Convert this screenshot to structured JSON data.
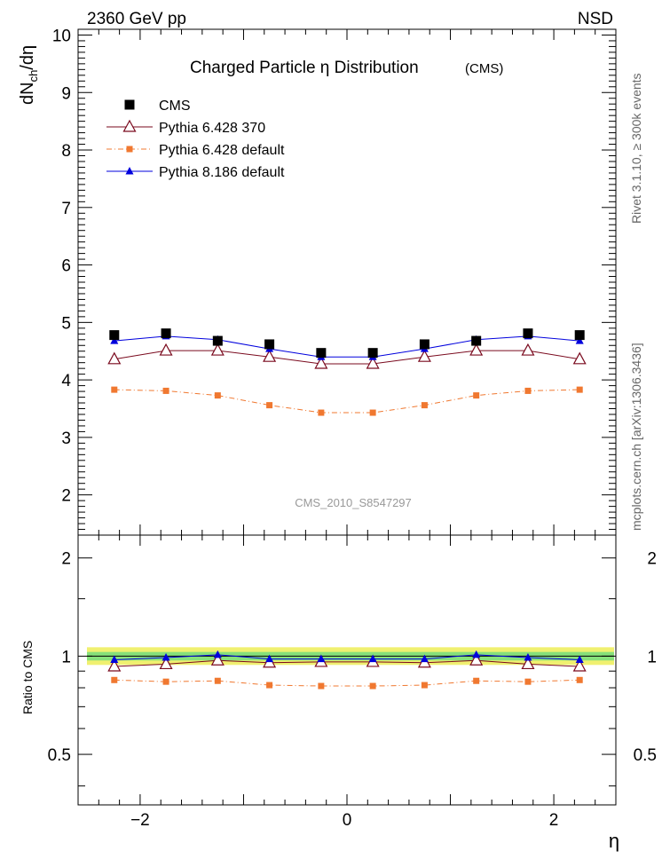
{
  "header": {
    "energy_label": "2360 GeV pp",
    "event_type": "NSD"
  },
  "side_labels": {
    "rivet": "Rivet 3.1.10, ≥ 300k events",
    "mcplots": "mcplots.cern.ch [arXiv:1306.3436]"
  },
  "chart_data": {
    "type": "line",
    "title": "Charged Particle  η Distribution",
    "title_suffix": "(CMS)",
    "watermark": "CMS_2010_S8547297",
    "xlabel": "η",
    "ylabel_main": "dN_ch/dη",
    "ylabel_ratio": "Ratio to CMS",
    "xlim": [
      -2.6,
      2.6
    ],
    "ylim_main": [
      1.3,
      10.1
    ],
    "ylim_ratio": [
      0.35,
      2.35
    ],
    "x_ticks": [
      -2,
      0,
      2
    ],
    "x_tick_labels": [
      "−2",
      "0",
      "2"
    ],
    "y_ticks_main": [
      2,
      3,
      4,
      5,
      6,
      7,
      8,
      9,
      10
    ],
    "y_tick_labels_main": [
      "2",
      "3",
      "4",
      "5",
      "6",
      "7",
      "8",
      "9",
      "10"
    ],
    "y_ticks_ratio": [
      0.5,
      1,
      2
    ],
    "y_tick_labels_ratio": [
      "0.5",
      "1",
      "2"
    ],
    "x": [
      -2.25,
      -1.75,
      -1.25,
      -0.75,
      -0.25,
      0.25,
      0.75,
      1.25,
      1.75,
      2.25
    ],
    "ratio_band": {
      "inner": [
        0.97,
        1.03
      ],
      "outer": [
        0.94,
        1.065
      ]
    },
    "series": [
      {
        "name": "CMS",
        "color": "#000000",
        "marker": "square",
        "values": [
          4.78,
          4.81,
          4.68,
          4.62,
          4.47,
          4.47,
          4.62,
          4.68,
          4.81,
          4.78
        ],
        "ratio": [
          1,
          1,
          1,
          1,
          1,
          1,
          1,
          1,
          1,
          1
        ]
      },
      {
        "name": "Pythia 6.428 370",
        "color": "#7a0a1e",
        "marker": "open-triangle",
        "values": [
          4.36,
          4.51,
          4.51,
          4.4,
          4.28,
          4.28,
          4.4,
          4.51,
          4.51,
          4.36
        ],
        "ratio": [
          0.93,
          0.945,
          0.97,
          0.955,
          0.96,
          0.96,
          0.955,
          0.97,
          0.945,
          0.93
        ]
      },
      {
        "name": "Pythia 6.428 default",
        "color": "#f07830",
        "marker": "small-square",
        "values": [
          3.83,
          3.81,
          3.73,
          3.56,
          3.43,
          3.43,
          3.56,
          3.73,
          3.81,
          3.83
        ],
        "ratio": [
          0.845,
          0.835,
          0.84,
          0.815,
          0.81,
          0.81,
          0.815,
          0.84,
          0.835,
          0.845
        ]
      },
      {
        "name": "Pythia 8.186 default",
        "color": "#0000dd",
        "marker": "filled-triangle",
        "values": [
          4.68,
          4.76,
          4.7,
          4.54,
          4.4,
          4.4,
          4.54,
          4.7,
          4.76,
          4.68
        ],
        "ratio": [
          0.975,
          0.99,
          1.01,
          0.98,
          0.98,
          0.98,
          0.98,
          1.01,
          0.99,
          0.975
        ]
      }
    ]
  }
}
